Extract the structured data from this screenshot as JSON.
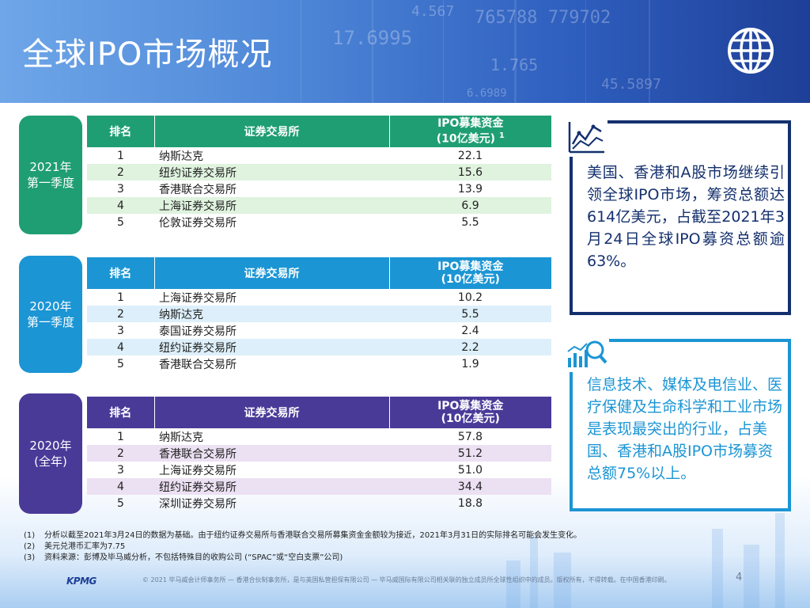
{
  "title": "全球IPO市场概况",
  "tables": [
    {
      "period": [
        "2021年",
        "第一季度"
      ],
      "headers": {
        "rank": "排名",
        "exchange": "证券交易所",
        "amount": "IPO募集资金",
        "amount_unit": "(10亿美元)",
        "amount_note": "1"
      },
      "rows": [
        {
          "rank": "1",
          "exchange": "纳斯达克",
          "amount": "22.1"
        },
        {
          "rank": "2",
          "exchange": "纽约证券交易所",
          "amount": "15.6"
        },
        {
          "rank": "3",
          "exchange": "香港联合交易所",
          "amount": "13.9"
        },
        {
          "rank": "4",
          "exchange": "上海证券交易所",
          "amount": "6.9"
        },
        {
          "rank": "5",
          "exchange": "伦敦证券交易所",
          "amount": "5.5"
        }
      ]
    },
    {
      "period": [
        "2020年",
        "第一季度"
      ],
      "headers": {
        "rank": "排名",
        "exchange": "证券交易所",
        "amount": "IPO募集资金",
        "amount_unit": "(10亿美元)",
        "amount_note": ""
      },
      "rows": [
        {
          "rank": "1",
          "exchange": "上海证券交易所",
          "amount": "10.2"
        },
        {
          "rank": "2",
          "exchange": "纳斯达克",
          "amount": "5.5"
        },
        {
          "rank": "3",
          "exchange": "泰国证券交易所",
          "amount": "2.4"
        },
        {
          "rank": "4",
          "exchange": "纽约证券交易所",
          "amount": "2.2"
        },
        {
          "rank": "5",
          "exchange": "香港联合交易所",
          "amount": "1.9"
        }
      ]
    },
    {
      "period": [
        "2020年",
        "(全年)"
      ],
      "headers": {
        "rank": "排名",
        "exchange": "证券交易所",
        "amount": "IPO募集资金",
        "amount_unit": "(10亿美元)",
        "amount_note": ""
      },
      "rows": [
        {
          "rank": "1",
          "exchange": "纳斯达克",
          "amount": "57.8"
        },
        {
          "rank": "2",
          "exchange": "香港联合交易所",
          "amount": "51.2"
        },
        {
          "rank": "3",
          "exchange": "上海证券交易所",
          "amount": "51.0"
        },
        {
          "rank": "4",
          "exchange": "纽约证券交易所",
          "amount": "34.4"
        },
        {
          "rank": "5",
          "exchange": "深圳证券交易所",
          "amount": "18.8"
        }
      ]
    }
  ],
  "box1": {
    "text": "美国、香港和A股市场继续引领全球IPO市场，筹资总额达614亿美元，占截至2021年3月24日全球IPO募资总额逾63%。",
    "icon": "line-chart-icon"
  },
  "box2": {
    "text": "信息技术、媒体及电信业、医疗保健及生命科学和工业市场是表现最突出的行业，占美国、香港和A股IPO市场募资总额75%以上。",
    "icon": "magnifier-chart-icon"
  },
  "notes": [
    {
      "num": "(1)",
      "text": "分析以截至2021年3月24日的数据为基础。由于纽约证券交易所与香港联合交易所募集资金金额较为接近，2021年3月31日的实际排名可能会发生变化。"
    },
    {
      "num": "(2)",
      "text": "美元兑港币汇率为7.75"
    },
    {
      "num": "(3)",
      "text": "资料来源：彭博及毕马威分析，不包括特殊目的收购公司 (“SPAC”或“空白支票”公司)"
    }
  ],
  "footer": "© 2021 毕马威会计师事务所 — 香港合伙制事务所，是与英国私营担保有限公司 — 毕马威国际有限公司相关联的独立成员所全球性组织中的成员。版权所有，不得转载。在中国香港印刷。",
  "page_number": "4",
  "logo": "KPMG",
  "colors": {
    "green": "#1f9e73",
    "blue": "#1b95d4",
    "purple": "#4a3a98",
    "navy": "#14306e"
  },
  "banner_deco": [
    "17.6995",
    "4.567",
    "765788 779702",
    "45.5897",
    "1.765",
    "6.6989"
  ]
}
